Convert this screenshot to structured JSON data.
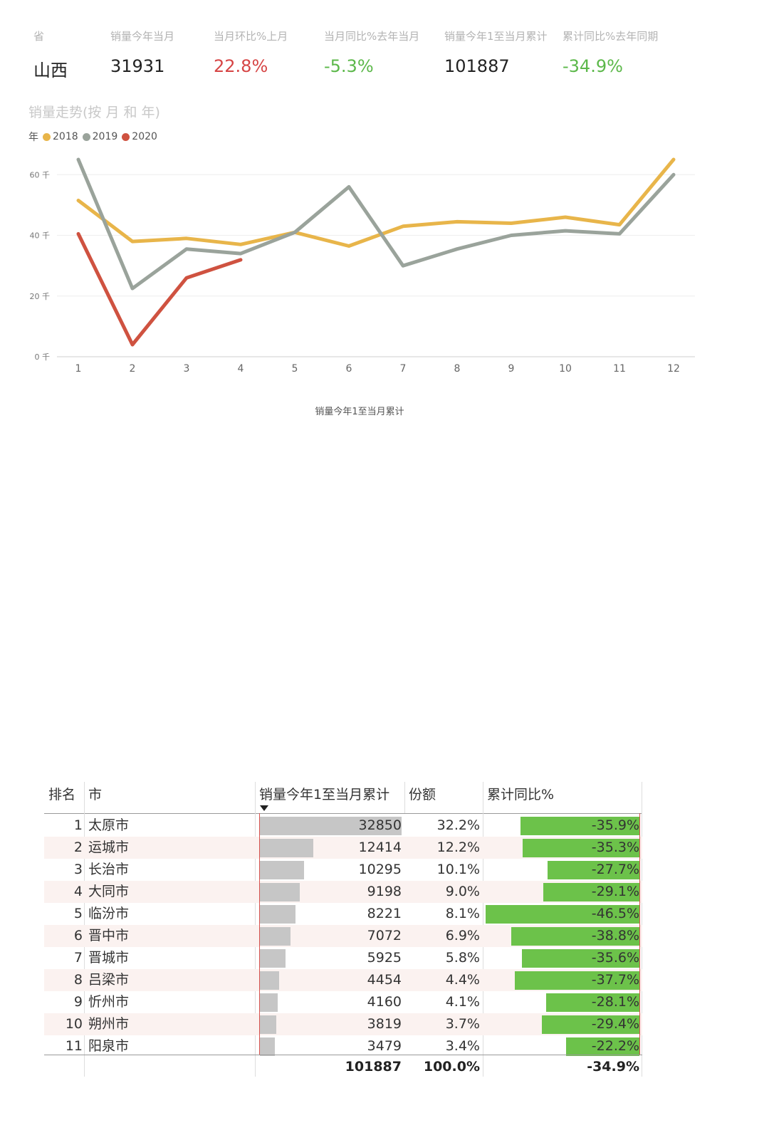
{
  "kpis": [
    {
      "label": "省",
      "value": "山西",
      "color": "#222222"
    },
    {
      "label": "销量今年当月",
      "value": "31931",
      "color": "#222222"
    },
    {
      "label": "当月环比%上月",
      "value": "22.8%",
      "color": "#d64545"
    },
    {
      "label": "当月同比%去年当月",
      "value": "-5.3%",
      "color": "#5cb84a"
    },
    {
      "label": "销量今年1至当月累计",
      "value": "101887",
      "color": "#222222"
    },
    {
      "label": "累计同比%去年同期",
      "value": "-34.9%",
      "color": "#5cb84a"
    }
  ],
  "chart": {
    "title": "销量走势(按 月 和 年)",
    "legend_title": "年",
    "ytick_labels": [
      "0 千",
      "20 千",
      "40 千",
      "60 千"
    ]
  },
  "chart_data": {
    "type": "line",
    "x": [
      1,
      2,
      3,
      4,
      5,
      6,
      7,
      8,
      9,
      10,
      11,
      12
    ],
    "ylim": [
      0,
      65000
    ],
    "yticks": [
      0,
      20000,
      40000,
      60000
    ],
    "grid": true,
    "legend_position": "top-left",
    "series": [
      {
        "name": "2018",
        "color": "#e8b54a",
        "values": [
          51500,
          38000,
          39000,
          37000,
          41000,
          36500,
          43000,
          44500,
          44000,
          46000,
          43500,
          65000
        ]
      },
      {
        "name": "2019",
        "color": "#9aa39b",
        "values": [
          65000,
          22500,
          35500,
          34000,
          41000,
          56000,
          30000,
          35500,
          40000,
          41500,
          40500,
          60000
        ]
      },
      {
        "name": "2020",
        "color": "#cf5240",
        "values": [
          40500,
          4000,
          26000,
          31931,
          null,
          null,
          null,
          null,
          null,
          null,
          null,
          null
        ]
      }
    ]
  },
  "map": {
    "title": "销量今年1至当月累计",
    "highlight_color": "#ea3b3b"
  },
  "table": {
    "headers": {
      "rank": "排名",
      "city": "市",
      "value": "销量今年1至当月累计",
      "share": "份额",
      "yoy": "累计同比%"
    },
    "max_value": 32850,
    "yoy_scale_max": 46.5,
    "rows": [
      {
        "rank": "1",
        "city": "太原市",
        "value": 32850,
        "value_text": "32850",
        "share": "32.2%",
        "yoy": -35.9,
        "yoy_text": "-35.9%"
      },
      {
        "rank": "2",
        "city": "运城市",
        "value": 12414,
        "value_text": "12414",
        "share": "12.2%",
        "yoy": -35.3,
        "yoy_text": "-35.3%"
      },
      {
        "rank": "3",
        "city": "长治市",
        "value": 10295,
        "value_text": "10295",
        "share": "10.1%",
        "yoy": -27.7,
        "yoy_text": "-27.7%"
      },
      {
        "rank": "4",
        "city": "大同市",
        "value": 9198,
        "value_text": "9198",
        "share": "9.0%",
        "yoy": -29.1,
        "yoy_text": "-29.1%"
      },
      {
        "rank": "5",
        "city": "临汾市",
        "value": 8221,
        "value_text": "8221",
        "share": "8.1%",
        "yoy": -46.5,
        "yoy_text": "-46.5%"
      },
      {
        "rank": "6",
        "city": "晋中市",
        "value": 7072,
        "value_text": "7072",
        "share": "6.9%",
        "yoy": -38.8,
        "yoy_text": "-38.8%"
      },
      {
        "rank": "7",
        "city": "晋城市",
        "value": 5925,
        "value_text": "5925",
        "share": "5.8%",
        "yoy": -35.6,
        "yoy_text": "-35.6%"
      },
      {
        "rank": "8",
        "city": "吕梁市",
        "value": 4454,
        "value_text": "4454",
        "share": "4.4%",
        "yoy": -37.7,
        "yoy_text": "-37.7%"
      },
      {
        "rank": "9",
        "city": "忻州市",
        "value": 4160,
        "value_text": "4160",
        "share": "4.1%",
        "yoy": -28.1,
        "yoy_text": "-28.1%"
      },
      {
        "rank": "10",
        "city": "朔州市",
        "value": 3819,
        "value_text": "3819",
        "share": "3.7%",
        "yoy": -29.4,
        "yoy_text": "-29.4%"
      },
      {
        "rank": "11",
        "city": "阳泉市",
        "value": 3479,
        "value_text": "3479",
        "share": "3.4%",
        "yoy": -22.2,
        "yoy_text": "-22.2%"
      }
    ],
    "total": {
      "value": "101887",
      "share": "100.0%",
      "yoy": "-34.9%"
    }
  }
}
